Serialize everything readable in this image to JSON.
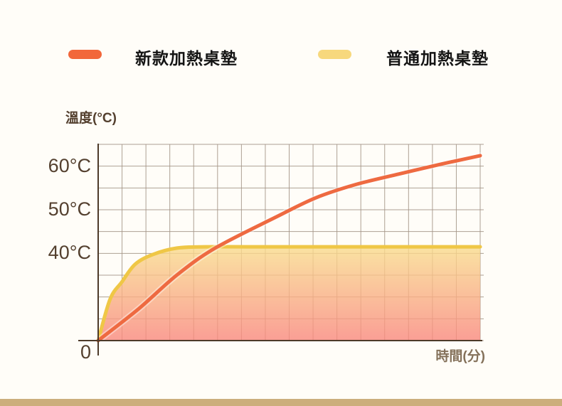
{
  "legend": {
    "items": [
      {
        "label": "新款加熱桌墊",
        "color": "#f2673a"
      },
      {
        "label": "普通加熱桌墊",
        "color": "#f7d87d"
      }
    ]
  },
  "chart": {
    "y_axis_title": "溫度(°C)",
    "x_axis_title": "時間(分)",
    "origin_label": "0",
    "y_ticks": [
      {
        "label": "60°C",
        "temp": 60
      },
      {
        "label": "50°C",
        "temp": 50
      },
      {
        "label": "40°C",
        "temp": 40
      }
    ]
  },
  "chart_data": {
    "type": "line",
    "title": "",
    "xlabel": "時間(分)",
    "ylabel": "溫度(°C)",
    "x_range": [
      0,
      16
    ],
    "y_tick_values": [
      0,
      40,
      50,
      60
    ],
    "y_top_value": 65,
    "grid": {
      "columns": 16,
      "rows": 9,
      "on": true,
      "color": "#a59689"
    },
    "axis_color": "#4d3a29",
    "legend_position": "top",
    "series": [
      {
        "name": "新款加熱桌墊",
        "color": "#ee6a41",
        "line_width": 5,
        "fill": false,
        "points": [
          [
            0,
            0
          ],
          [
            1.7,
            14.6
          ],
          [
            3.3,
            30.1
          ],
          [
            4.9,
            41.2
          ],
          [
            7.4,
            48.2
          ],
          [
            9.1,
            52.7
          ],
          [
            10.8,
            55.8
          ],
          [
            12.6,
            58.2
          ],
          [
            14.4,
            60.5
          ],
          [
            16,
            62.4
          ]
        ]
      },
      {
        "name": "普通加熱桌墊",
        "color": "#efc746",
        "line_width": 5,
        "fill": true,
        "fill_gradient": [
          "#f9dc8c",
          "#f9877c"
        ],
        "fill_opacity": 0.8,
        "plateau_temp": 41.5,
        "points": [
          [
            0,
            0
          ],
          [
            0.5,
            19
          ],
          [
            1.0,
            27
          ],
          [
            1.55,
            35
          ],
          [
            2.3,
            39.5
          ],
          [
            3.3,
            41.2
          ],
          [
            4.5,
            41.5
          ],
          [
            7,
            41.5
          ],
          [
            16,
            41.5
          ]
        ]
      }
    ]
  },
  "footer": {
    "bar_color": "#ccae7c"
  }
}
